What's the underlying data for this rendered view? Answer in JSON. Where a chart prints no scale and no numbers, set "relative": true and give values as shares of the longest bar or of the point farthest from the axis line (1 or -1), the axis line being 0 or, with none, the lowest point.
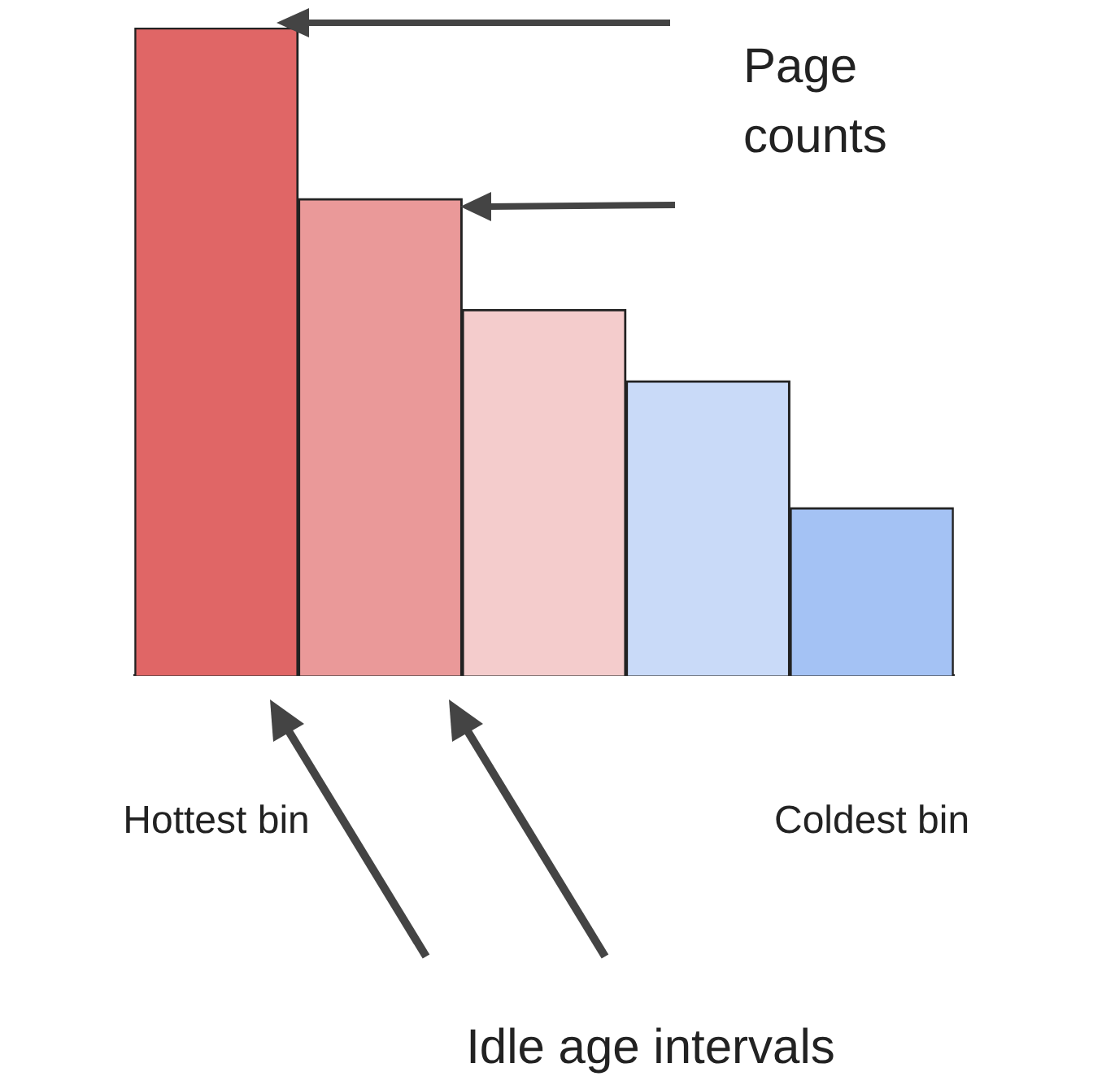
{
  "chart_data": {
    "type": "bar",
    "relative": true,
    "categories": [
      "Hottest bin",
      null,
      null,
      null,
      "Coldest bin"
    ],
    "values": [
      1,
      0.736,
      0.565,
      0.455,
      0.259
    ],
    "colors": [
      "#e06666",
      "#ea9999",
      "#f4cccc",
      "#c9daf8",
      "#a4c2f4"
    ],
    "annotations": [
      "Page counts",
      "Idle age intervals"
    ],
    "grid": false,
    "legend": false
  }
}
